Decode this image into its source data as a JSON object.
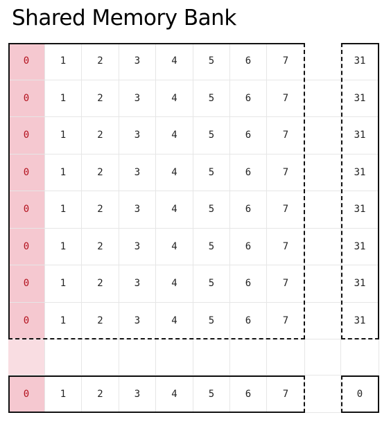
{
  "title": "Shared Memory Bank",
  "rows": [
    [
      "0",
      "1",
      "2",
      "3",
      "4",
      "5",
      "6",
      "7",
      "31"
    ],
    [
      "0",
      "1",
      "2",
      "3",
      "4",
      "5",
      "6",
      "7",
      "31"
    ],
    [
      "0",
      "1",
      "2",
      "3",
      "4",
      "5",
      "6",
      "7",
      "31"
    ],
    [
      "0",
      "1",
      "2",
      "3",
      "4",
      "5",
      "6",
      "7",
      "31"
    ],
    [
      "0",
      "1",
      "2",
      "3",
      "4",
      "5",
      "6",
      "7",
      "31"
    ],
    [
      "0",
      "1",
      "2",
      "3",
      "4",
      "5",
      "6",
      "7",
      "31"
    ],
    [
      "0",
      "1",
      "2",
      "3",
      "4",
      "5",
      "6",
      "7",
      "31"
    ],
    [
      "0",
      "1",
      "2",
      "3",
      "4",
      "5",
      "6",
      "7",
      "31"
    ]
  ],
  "last_row": [
    "0",
    "1",
    "2",
    "3",
    "4",
    "5",
    "6",
    "7",
    "0"
  ],
  "colors": {
    "highlight_bg": "#f5c8d0",
    "highlight_text": "#b3121e"
  }
}
